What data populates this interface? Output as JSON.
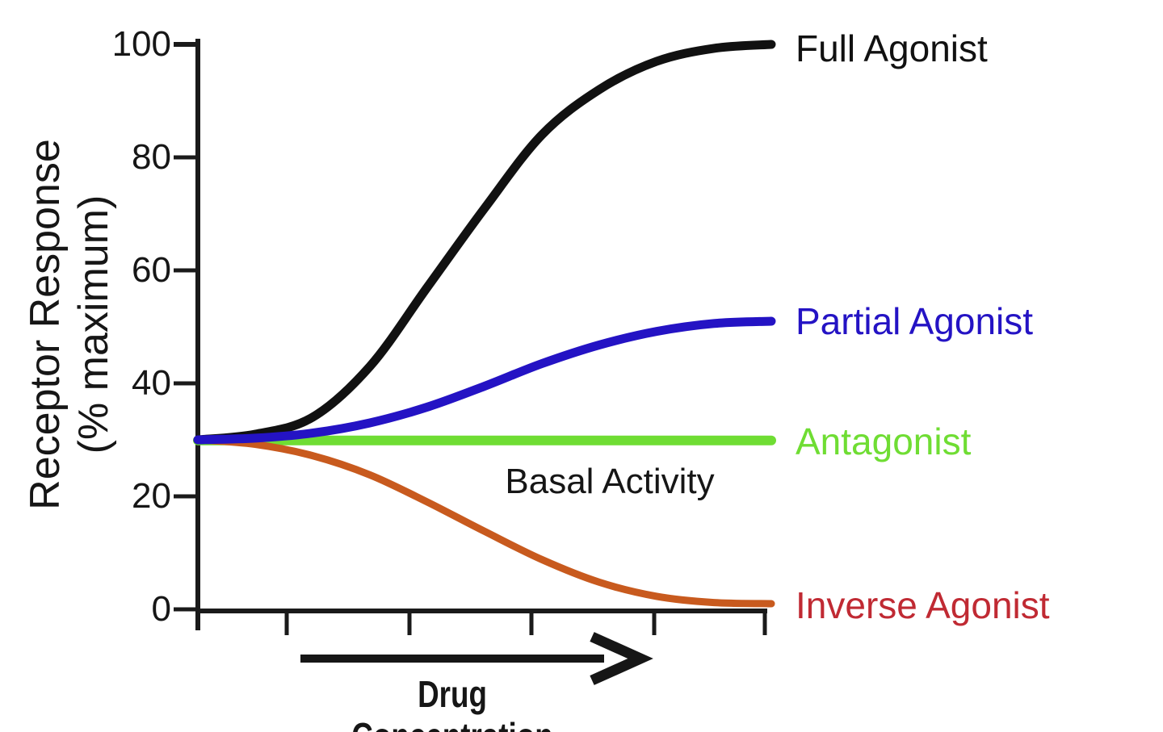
{
  "figure": {
    "background_color": "#ffffff",
    "axis_color": "#1a1a1a",
    "y_axis_title_line1": "Receptor Response",
    "y_axis_title_line2": "(% maximum)",
    "x_axis_title": "Drug Concentration",
    "annotation": "Basal Activity"
  },
  "chart_data": {
    "type": "line",
    "title": "",
    "xlabel": "Drug Concentration",
    "ylabel": "Receptor Response (% maximum)",
    "ylim": [
      0,
      100
    ],
    "xlim": [
      0,
      5
    ],
    "yticks": [
      100,
      80,
      60,
      40,
      20,
      0
    ],
    "ytick_labels": [
      "100",
      "80",
      "60",
      "40",
      "20",
      "0"
    ],
    "xticks_unlabeled": true,
    "grid": false,
    "legend_position": "right-of-curve-ends",
    "basal_activity_level": 30,
    "annotation": "Basal Activity",
    "x": [
      0,
      0.5,
      1,
      1.5,
      2,
      2.5,
      3,
      3.5,
      4,
      4.5,
      5
    ],
    "series": [
      {
        "name": "Full Agonist",
        "color": "#111111",
        "width": 11,
        "y": [
          30,
          31,
          34,
          43,
          57,
          71,
          84,
          92,
          97,
          99.3,
          100
        ]
      },
      {
        "name": "Partial Agonist",
        "color": "#2413c4",
        "width": 11,
        "y": [
          30,
          30.3,
          31.2,
          33,
          35.8,
          39.5,
          43.5,
          46.8,
          49.2,
          50.6,
          51
        ]
      },
      {
        "name": "Antagonist",
        "color": "#6fdd33",
        "width": 12,
        "y": [
          29.9,
          29.9,
          29.9,
          29.9,
          29.9,
          29.9,
          29.9,
          29.9,
          29.9,
          29.9,
          29.9
        ]
      },
      {
        "name": "Inverse Agonist",
        "color": "#c85a1e",
        "width": 9,
        "label_color": "#c02a33",
        "y": [
          30,
          29.2,
          27.2,
          23.8,
          19,
          13.8,
          8.8,
          4.8,
          2.3,
          1.2,
          1
        ]
      }
    ]
  }
}
